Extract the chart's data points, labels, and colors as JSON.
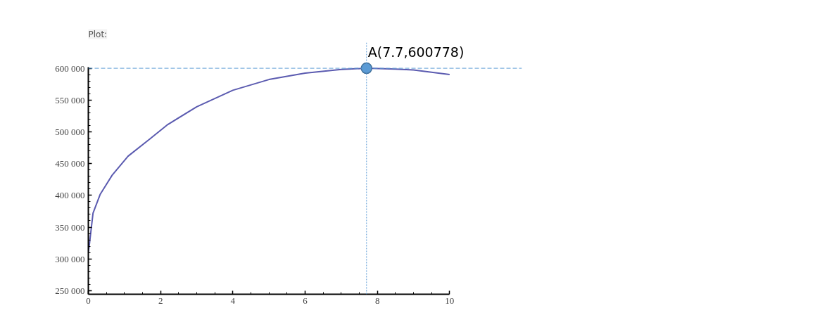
{
  "chart_data": {
    "type": "line",
    "title": "Plot:",
    "series": [
      {
        "color": "#5b5bb0",
        "x": [
          0,
          0.03,
          0.13,
          0.33,
          0.66,
          1.1,
          1.7,
          2.2,
          3,
          4,
          5,
          6,
          7,
          7.7,
          8.5,
          9,
          10
        ],
        "values": [
          311000,
          323000,
          372000,
          402000,
          432000,
          462000,
          489000,
          512000,
          540000,
          566000,
          583000,
          593000,
          599000,
          600778,
          599500,
          598000,
          591000
        ]
      },
      {
        "type": "scatter",
        "color": "#5b9bd5",
        "marker": "circle",
        "x": [
          7.7
        ],
        "values": [
          600778
        ]
      }
    ],
    "ref_lines": [
      {
        "axis": "y",
        "value": 600778,
        "color": "#5b9bd5",
        "line_style": "dashed"
      },
      {
        "axis": "x",
        "value": 7.7,
        "color": "#5b9bd5",
        "line_style": "dotted"
      }
    ],
    "annotations": [
      {
        "text": "A(7.7,600778)",
        "x": 7.7,
        "y": 600778
      }
    ],
    "xlim": [
      0,
      10
    ],
    "xticks": [
      0,
      2,
      4,
      6,
      8,
      10
    ],
    "ylim": [
      244000,
      602000
    ],
    "yticks": [
      {
        "value": 250000,
        "label": "250 000"
      },
      {
        "value": 300000,
        "label": "300 000"
      },
      {
        "value": 350000,
        "label": "350 000"
      },
      {
        "value": 400000,
        "label": "400 000"
      },
      {
        "value": 450000,
        "label": "450 000"
      },
      {
        "value": 500000,
        "label": "500 000"
      },
      {
        "value": 550000,
        "label": "550 000"
      },
      {
        "value": 600000,
        "label": "600 000"
      }
    ],
    "grid": false
  }
}
